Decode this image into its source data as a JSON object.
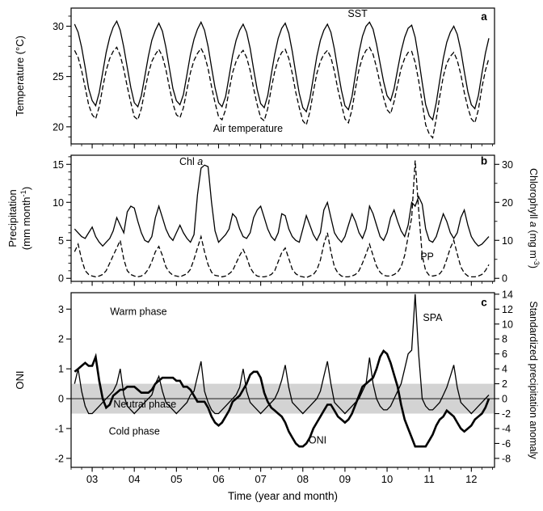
{
  "figure": {
    "xlabel": "Time (year and month)",
    "x_range": [
      2002.5,
      2012.55
    ],
    "x_ticks": [
      2003,
      2004,
      2005,
      2006,
      2007,
      2008,
      2009,
      2010,
      2011,
      2012
    ],
    "x_tick_labels": [
      "03",
      "04",
      "05",
      "06",
      "07",
      "08",
      "09",
      "10",
      "11",
      "12"
    ],
    "background": "#ffffff",
    "line_color": "#000000",
    "band_color": "#d3d3d3"
  },
  "chart_data": [
    {
      "id": "a",
      "type": "line",
      "ylabel_segments": [
        [
          {
            "text": "Temperature (°C)"
          }
        ]
      ],
      "ylim": [
        18.3,
        31.8
      ],
      "yticks": [
        20,
        25,
        30
      ],
      "yminor_step": 1,
      "x_start": 2002.5833,
      "x_step": 0.083333,
      "series": [
        {
          "name": "SST",
          "axis": "left",
          "line_style": "solid",
          "line_weight": "normal",
          "values": [
            30.2,
            29.4,
            27.9,
            25.9,
            23.8,
            22.6,
            22.1,
            23.4,
            25.4,
            27.4,
            28.9,
            29.9,
            30.5,
            29.6,
            27.9,
            25.9,
            23.9,
            22.4,
            22.0,
            23.1,
            25.0,
            27.0,
            28.6,
            29.6,
            30.3,
            29.5,
            27.9,
            25.8,
            23.8,
            22.6,
            22.2,
            23.2,
            25.2,
            27.2,
            28.7,
            29.7,
            30.4,
            29.6,
            28.0,
            25.9,
            23.9,
            22.4,
            22.0,
            23.0,
            25.0,
            27.1,
            28.6,
            29.6,
            30.2,
            29.4,
            27.8,
            25.7,
            23.7,
            22.3,
            21.9,
            23.1,
            25.2,
            27.2,
            28.8,
            29.8,
            30.3,
            29.3,
            27.5,
            25.3,
            23.3,
            21.9,
            21.5,
            22.8,
            24.9,
            27.0,
            28.6,
            29.6,
            30.2,
            29.4,
            27.7,
            25.6,
            23.6,
            22.1,
            21.7,
            23.0,
            25.2,
            27.4,
            29.0,
            30.0,
            30.4,
            29.7,
            28.2,
            26.3,
            24.5,
            23.1,
            22.6,
            23.8,
            25.7,
            27.5,
            28.9,
            29.8,
            30.1,
            28.9,
            26.8,
            24.4,
            22.2,
            21.1,
            20.7,
            22.4,
            24.6,
            26.8,
            28.4,
            29.4,
            30.0,
            29.2,
            27.6,
            25.5,
            23.5,
            22.2,
            21.8,
            23.1,
            25.3,
            27.3,
            28.8
          ]
        },
        {
          "name": "Air temperature",
          "axis": "left",
          "line_style": "dashed",
          "line_weight": "normal",
          "values": [
            27.6,
            26.9,
            25.6,
            23.9,
            22.2,
            21.2,
            20.8,
            22.0,
            23.9,
            25.6,
            26.8,
            27.5,
            27.9,
            27.1,
            25.7,
            24.0,
            22.4,
            21.0,
            20.7,
            21.8,
            23.6,
            25.3,
            26.5,
            27.2,
            27.7,
            27.0,
            25.7,
            23.9,
            22.3,
            21.2,
            20.9,
            21.9,
            23.7,
            25.4,
            26.6,
            27.3,
            27.8,
            27.1,
            25.8,
            24.0,
            22.4,
            21.0,
            20.7,
            21.7,
            23.6,
            25.4,
            26.5,
            27.2,
            27.6,
            26.9,
            25.6,
            23.8,
            22.2,
            20.9,
            20.6,
            21.8,
            23.8,
            25.5,
            26.7,
            27.4,
            27.7,
            26.8,
            25.3,
            23.4,
            21.9,
            20.6,
            20.2,
            21.5,
            23.5,
            25.3,
            26.5,
            27.2,
            27.6,
            26.9,
            25.5,
            23.7,
            22.2,
            20.8,
            20.4,
            21.7,
            23.8,
            25.7,
            26.9,
            27.6,
            27.9,
            27.2,
            25.9,
            24.3,
            22.9,
            21.7,
            21.3,
            22.5,
            24.2,
            25.8,
            26.8,
            27.4,
            27.5,
            26.4,
            24.6,
            22.4,
            20.2,
            19.3,
            18.9,
            20.8,
            23.0,
            25.0,
            26.3,
            27.0,
            27.4,
            26.6,
            25.2,
            23.4,
            21.9,
            20.8,
            20.4,
            21.7,
            23.9,
            25.6,
            26.8
          ]
        }
      ],
      "annotations": [
        {
          "segments": [
            {
              "text": "SST"
            }
          ],
          "x": 2009.3,
          "y": 30.9,
          "anchor": "middle"
        },
        {
          "segments": [
            {
              "text": "a"
            }
          ],
          "x": 2012.3,
          "y": 30.6,
          "anchor": "middle",
          "bold": true
        },
        {
          "segments": [
            {
              "text": "Air temperature"
            }
          ],
          "x": 2006.7,
          "y": 19.5,
          "anchor": "middle"
        }
      ]
    },
    {
      "id": "b",
      "type": "line",
      "ylabel_segments": [
        [
          {
            "text": "Precipitation"
          }
        ],
        [
          {
            "text": "(mm month"
          },
          {
            "text": "-1",
            "sup": true
          },
          {
            "text": ")"
          }
        ]
      ],
      "ylim": [
        -0.4,
        16.2
      ],
      "yticks": [
        0,
        5,
        10,
        15
      ],
      "yminor_step": 1,
      "right_axis": {
        "label_segments": [
          {
            "text": "Chlorophyll "
          },
          {
            "text": "a",
            "italic": true
          },
          {
            "text": " (mg m"
          },
          {
            "text": "-3",
            "sup": true
          },
          {
            "text": ")"
          }
        ],
        "ticks": [
          0,
          10,
          20,
          30
        ],
        "minor_step": 5,
        "scale": 2
      },
      "x_start": 2002.5833,
      "x_step": 0.083333,
      "series": [
        {
          "name": "Chl a",
          "axis": "right",
          "line_style": "solid",
          "line_weight": "normal",
          "values": [
            13,
            12,
            11,
            10.5,
            12,
            13.5,
            11,
            9.5,
            8.5,
            9.5,
            10.5,
            12.5,
            16,
            14,
            12,
            17.5,
            19,
            18.5,
            15,
            12,
            10,
            9.5,
            11,
            16,
            19,
            16,
            13,
            11,
            10,
            12,
            14,
            12,
            10.5,
            9.5,
            11.5,
            22,
            29,
            29.8,
            29.4,
            20,
            12.5,
            9.5,
            10.5,
            11.5,
            13,
            17,
            16,
            13,
            11,
            10.5,
            12,
            16,
            18,
            19,
            16,
            13,
            11,
            10,
            12,
            17,
            16.5,
            13,
            11,
            10,
            9.5,
            13,
            16.5,
            14,
            11.5,
            10,
            12,
            18,
            20,
            16,
            12,
            10.5,
            9.5,
            11,
            14,
            17,
            15,
            12,
            10.5,
            13,
            19,
            17,
            14,
            11,
            10,
            12,
            16,
            18,
            15,
            12.5,
            11,
            14,
            20,
            19,
            21.5,
            19.5,
            13,
            10,
            9.5,
            11,
            14,
            17,
            15,
            12,
            10.5,
            12,
            16,
            18,
            14,
            11,
            9.5,
            8.5,
            9,
            10,
            11
          ]
        },
        {
          "name": "PP",
          "axis": "left",
          "line_style": "dashed",
          "line_weight": "normal",
          "values": [
            3.5,
            4.5,
            2.5,
            1.0,
            0.5,
            0.3,
            0.2,
            0.3,
            0.5,
            1.0,
            2.0,
            3.0,
            4.0,
            5.0,
            2.5,
            1.0,
            0.5,
            0.3,
            0.2,
            0.3,
            0.6,
            1.2,
            2.2,
            3.5,
            4.2,
            3.0,
            1.5,
            0.8,
            0.4,
            0.3,
            0.2,
            0.4,
            0.6,
            1.2,
            2.5,
            4.0,
            5.5,
            3.5,
            1.8,
            0.8,
            0.4,
            0.3,
            0.2,
            0.3,
            0.6,
            1.0,
            2.0,
            3.0,
            3.8,
            2.8,
            1.4,
            0.7,
            0.3,
            0.2,
            0.2,
            0.3,
            0.5,
            1.0,
            2.2,
            3.4,
            4.0,
            2.6,
            1.2,
            0.6,
            0.3,
            0.2,
            0.1,
            0.3,
            0.5,
            1.1,
            2.4,
            4.5,
            6.0,
            3.5,
            1.5,
            0.7,
            0.3,
            0.2,
            0.2,
            0.3,
            0.5,
            1.0,
            2.0,
            3.2,
            4.5,
            3.0,
            1.6,
            0.8,
            0.4,
            0.3,
            0.3,
            0.5,
            0.8,
            1.5,
            3.0,
            5.5,
            8.0,
            15.5,
            9.0,
            3.0,
            1.0,
            0.4,
            0.3,
            0.4,
            0.6,
            1.2,
            2.5,
            4.0,
            5.0,
            3.2,
            1.5,
            0.7,
            0.3,
            0.2,
            0.2,
            0.3,
            0.5,
            1.0,
            1.8
          ]
        }
      ],
      "annotations": [
        {
          "segments": [
            {
              "text": "Chl "
            },
            {
              "text": "a",
              "italic": true
            }
          ],
          "x": 2005.35,
          "y": 14.9,
          "anchor": "middle"
        },
        {
          "segments": [
            {
              "text": "PP"
            }
          ],
          "x": 2010.95,
          "y": 2.4,
          "anchor": "middle"
        },
        {
          "segments": [
            {
              "text": "b"
            }
          ],
          "x": 2012.3,
          "y": 15.0,
          "anchor": "middle",
          "bold": true
        }
      ]
    },
    {
      "id": "c",
      "type": "line",
      "ylabel_segments": [
        [
          {
            "text": "ONI"
          }
        ]
      ],
      "ylim": [
        -2.3,
        3.55
      ],
      "yticks": [
        -2,
        -1,
        0,
        1,
        2,
        3
      ],
      "yminor_step": null,
      "band": {
        "from": -0.5,
        "to": 0.5
      },
      "hline": 0,
      "right_axis": {
        "label_segments": [
          {
            "text": "Standardized precipitation anomaly"
          }
        ],
        "ticks": [
          -8,
          -6,
          -4,
          -2,
          0,
          2,
          4,
          6,
          8,
          10,
          12,
          14
        ],
        "minor_step": null,
        "scale": 4
      },
      "x_start": 2002.5833,
      "x_step": 0.083333,
      "series": [
        {
          "name": "SPA",
          "axis": "right",
          "line_style": "solid",
          "line_weight": "normal",
          "values": [
            2,
            4,
            1,
            -1,
            -2,
            -2,
            -1.5,
            -1,
            -0.5,
            0,
            0.5,
            1,
            2,
            4,
            0.5,
            -1,
            -1.5,
            -2,
            -1.5,
            -1,
            -0.5,
            0,
            0.5,
            2,
            3,
            1,
            -0.5,
            -1,
            -1.5,
            -2,
            -1.5,
            -1,
            -0.5,
            0.5,
            1,
            3,
            5,
            1,
            -0.5,
            -1.5,
            -2,
            -2,
            -1.5,
            -1,
            -0.5,
            0,
            0.5,
            1.5,
            4,
            1,
            -0.5,
            -1,
            -1.5,
            -2,
            -1.5,
            -1,
            -0.5,
            0,
            1,
            2.5,
            4.5,
            1.5,
            -0.5,
            -1,
            -1.5,
            -2,
            -1.5,
            -1,
            -0.5,
            0,
            1,
            3,
            5,
            2,
            -0.5,
            -1,
            -1.5,
            -2,
            -1.5,
            -1,
            -0.5,
            0,
            1,
            2,
            5.5,
            2,
            0,
            -1,
            -1.5,
            -1.5,
            -1,
            0,
            1,
            2,
            4,
            6,
            6.5,
            14,
            6,
            0,
            -1,
            -1.5,
            -1.5,
            -1,
            -0.5,
            0.5,
            1.5,
            3,
            4.5,
            1.5,
            -0.5,
            -1,
            -1.5,
            -2,
            -1.5,
            -1,
            -0.5,
            0,
            0.5
          ]
        },
        {
          "name": "ONI",
          "axis": "left",
          "line_style": "solid",
          "line_weight": "bold",
          "values": [
            0.9,
            1.0,
            1.1,
            1.2,
            1.1,
            1.1,
            1.4,
            0.6,
            0.0,
            -0.3,
            -0.2,
            0.1,
            0.2,
            0.3,
            0.3,
            0.4,
            0.4,
            0.4,
            0.3,
            0.2,
            0.2,
            0.2,
            0.3,
            0.5,
            0.6,
            0.7,
            0.7,
            0.7,
            0.7,
            0.6,
            0.6,
            0.4,
            0.4,
            0.3,
            0.1,
            -0.1,
            -0.1,
            -0.1,
            -0.3,
            -0.6,
            -0.8,
            -0.9,
            -0.8,
            -0.6,
            -0.4,
            -0.1,
            0.0,
            0.1,
            0.3,
            0.5,
            0.8,
            0.9,
            0.9,
            0.7,
            0.2,
            -0.1,
            -0.3,
            -0.4,
            -0.5,
            -0.6,
            -0.8,
            -1.1,
            -1.3,
            -1.5,
            -1.6,
            -1.6,
            -1.5,
            -1.3,
            -1.0,
            -0.8,
            -0.6,
            -0.4,
            -0.2,
            -0.2,
            -0.4,
            -0.6,
            -0.7,
            -0.8,
            -0.7,
            -0.5,
            -0.2,
            0.1,
            0.4,
            0.5,
            0.6,
            0.7,
            1.0,
            1.4,
            1.6,
            1.5,
            1.2,
            0.8,
            0.4,
            -0.2,
            -0.7,
            -1.0,
            -1.3,
            -1.6,
            -1.6,
            -1.6,
            -1.6,
            -1.4,
            -1.2,
            -0.9,
            -0.7,
            -0.6,
            -0.4,
            -0.5,
            -0.6,
            -0.8,
            -1.0,
            -1.1,
            -1.0,
            -0.9,
            -0.7,
            -0.6,
            -0.5,
            -0.3,
            0.0
          ]
        }
      ],
      "annotations": [
        {
          "segments": [
            {
              "text": "Warm phase"
            }
          ],
          "x": 2004.1,
          "y": 2.8,
          "anchor": "middle"
        },
        {
          "segments": [
            {
              "text": "Neutral phase"
            }
          ],
          "x": 2004.25,
          "y": -0.3,
          "anchor": "middle"
        },
        {
          "segments": [
            {
              "text": "Cold phase"
            }
          ],
          "x": 2004.0,
          "y": -1.2,
          "anchor": "middle"
        },
        {
          "segments": [
            {
              "text": "SPA"
            }
          ],
          "x": 2010.85,
          "y": 2.6,
          "anchor": "start"
        },
        {
          "segments": [
            {
              "text": "ONI"
            }
          ],
          "x": 2008.35,
          "y": -1.5,
          "anchor": "middle"
        },
        {
          "segments": [
            {
              "text": "c"
            }
          ],
          "x": 2012.3,
          "y": 3.1,
          "anchor": "middle",
          "bold": true
        }
      ]
    }
  ]
}
